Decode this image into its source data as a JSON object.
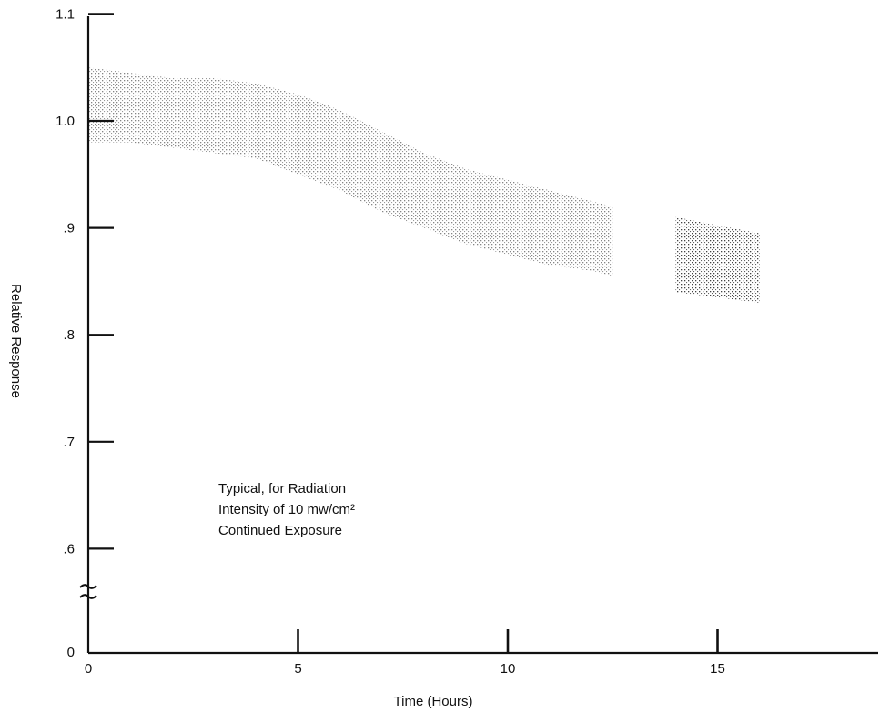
{
  "chart_data": {
    "type": "area",
    "title": "",
    "xlabel": "Time (Hours)",
    "ylabel": "Relative Response",
    "xlim": [
      0,
      19
    ],
    "ylim": [
      0.5,
      1.1
    ],
    "y_axis_break": true,
    "grid": false,
    "legend": "none",
    "x_ticks": [
      {
        "value": 0,
        "label": "0"
      },
      {
        "value": 5,
        "label": "5"
      },
      {
        "value": 10,
        "label": "10"
      },
      {
        "value": 15,
        "label": "15"
      }
    ],
    "y_ticks": [
      {
        "value": 1.1,
        "label": "1.1"
      },
      {
        "value": 1.0,
        "label": "1.0"
      },
      {
        "value": 0.9,
        "label": ".9"
      },
      {
        "value": 0.8,
        "label": ".8"
      },
      {
        "value": 0.7,
        "label": ".7"
      },
      {
        "value": 0.6,
        "label": ".6"
      },
      {
        "value": 0.5,
        "label": "0"
      }
    ],
    "annotation": [
      "Typical, for Radiation",
      "Intensity of 10 mw/cm²",
      "Continued Exposure"
    ],
    "series": [
      {
        "x": [
          0,
          1,
          2,
          3,
          4,
          5,
          6,
          7,
          8,
          9,
          10,
          11,
          12,
          12.5
        ],
        "upper": [
          1.05,
          1.045,
          1.04,
          1.04,
          1.035,
          1.025,
          1.01,
          0.99,
          0.97,
          0.955,
          0.945,
          0.935,
          0.925,
          0.92
        ],
        "lower": [
          0.98,
          0.98,
          0.975,
          0.97,
          0.965,
          0.95,
          0.935,
          0.915,
          0.9,
          0.885,
          0.875,
          0.865,
          0.86,
          0.855
        ]
      },
      {
        "x": [
          14,
          16
        ],
        "upper": [
          0.91,
          0.895
        ],
        "lower": [
          0.84,
          0.83
        ]
      }
    ],
    "colors": {
      "axis": "#111111",
      "band": "#1a1a1a"
    }
  }
}
